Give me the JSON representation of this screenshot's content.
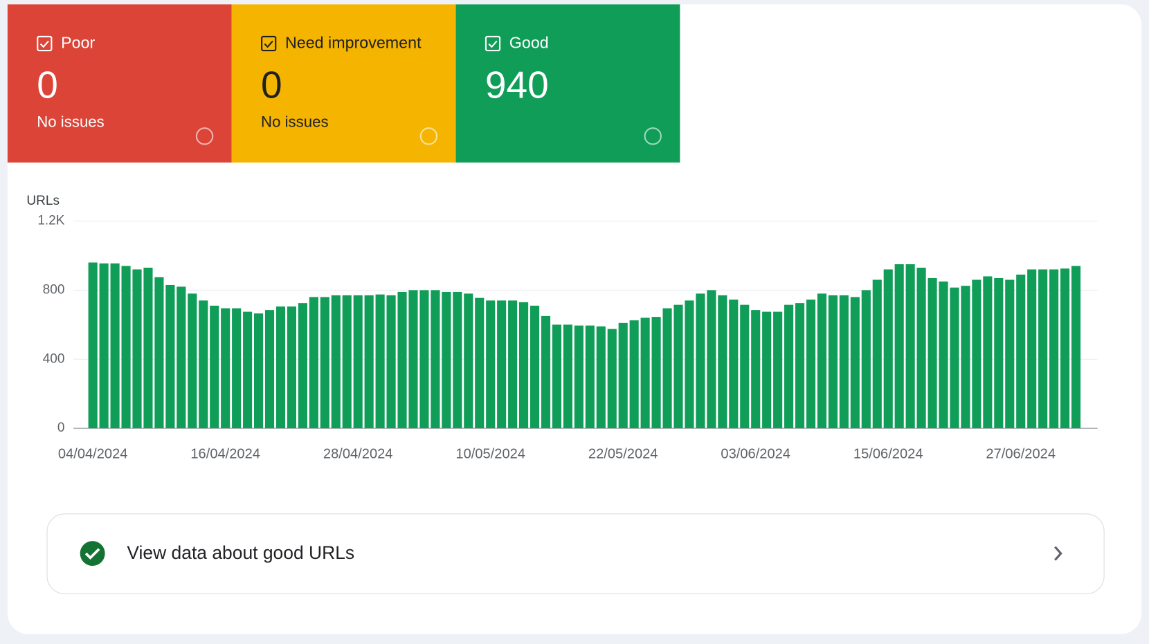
{
  "cards": [
    {
      "label": "Poor",
      "count": 0,
      "status": "No issues",
      "color": "#db4437"
    },
    {
      "label": "Need improvement",
      "count": 0,
      "status": "No issues",
      "color": "#f4b400"
    },
    {
      "label": "Good",
      "count": 940,
      "color": "#0f9d58"
    }
  ],
  "chart_data": {
    "type": "bar",
    "y_label": "URLs",
    "color": "#0f9d58",
    "grid": true,
    "ylim": [
      0,
      1200
    ],
    "yticks": [
      0,
      400,
      800,
      {
        "value": 1200,
        "label": "1.2K"
      }
    ],
    "categories": [
      "04/04/2024",
      null,
      null,
      null,
      null,
      null,
      null,
      null,
      null,
      null,
      null,
      null,
      "16/04/2024",
      null,
      null,
      null,
      null,
      null,
      null,
      null,
      null,
      null,
      null,
      null,
      "28/04/2024",
      null,
      null,
      null,
      null,
      null,
      null,
      null,
      null,
      null,
      null,
      null,
      "10/05/2024",
      null,
      null,
      null,
      null,
      null,
      null,
      null,
      null,
      null,
      null,
      null,
      "22/05/2024",
      null,
      null,
      null,
      null,
      null,
      null,
      null,
      null,
      null,
      null,
      null,
      "03/06/2024",
      null,
      null,
      null,
      null,
      null,
      null,
      null,
      null,
      null,
      null,
      null,
      "15/06/2024",
      null,
      null,
      null,
      null,
      null,
      null,
      null,
      null,
      null,
      null,
      null,
      "27/06/2024",
      null,
      null,
      null,
      null,
      null
    ],
    "values": [
      960,
      955,
      955,
      940,
      920,
      930,
      875,
      830,
      820,
      780,
      740,
      710,
      695,
      695,
      675,
      665,
      685,
      705,
      705,
      725,
      760,
      760,
      770,
      770,
      770,
      770,
      775,
      770,
      790,
      800,
      800,
      800,
      790,
      790,
      780,
      755,
      740,
      740,
      740,
      730,
      710,
      650,
      600,
      600,
      595,
      595,
      590,
      575,
      610,
      625,
      640,
      645,
      695,
      715,
      740,
      780,
      800,
      770,
      745,
      715,
      685,
      675,
      675,
      715,
      725,
      745,
      780,
      770,
      770,
      760,
      800,
      860,
      920,
      950,
      950,
      930,
      870,
      850,
      815,
      825,
      860,
      880,
      870,
      860,
      890,
      920,
      920,
      920,
      925,
      940
    ]
  },
  "link": {
    "text": "View data about good URLs"
  }
}
